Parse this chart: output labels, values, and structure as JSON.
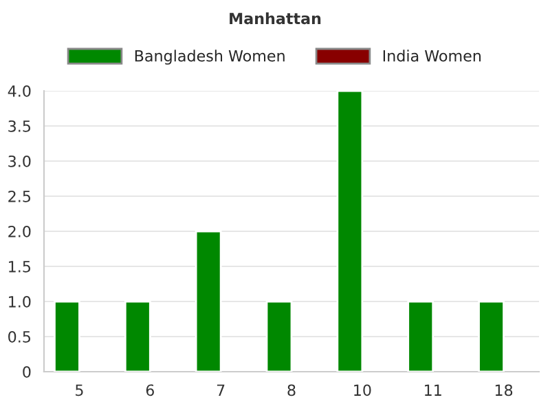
{
  "chart_data": {
    "type": "bar",
    "title": "Manhattan",
    "categories": [
      "5",
      "6",
      "7",
      "8",
      "10",
      "11",
      "18"
    ],
    "series": [
      {
        "name": "Bangladesh Women",
        "color": "#008800",
        "values": [
          1,
          1,
          2,
          1,
          4,
          1,
          1
        ]
      },
      {
        "name": "India Women",
        "color": "#880000",
        "values": [
          null,
          null,
          null,
          null,
          null,
          null,
          null
        ]
      }
    ],
    "ylim": [
      0,
      4
    ],
    "yticks": [
      0,
      {
        "value": 0.5,
        "label": "0.5"
      },
      {
        "value": 1,
        "label": "1.0"
      },
      {
        "value": 1.5,
        "label": "1.5"
      },
      {
        "value": 2,
        "label": "2.0"
      },
      {
        "value": 2.5,
        "label": "2.5"
      },
      {
        "value": 3,
        "label": "3.0"
      },
      {
        "value": 3.5,
        "label": "3.5"
      },
      {
        "value": 4,
        "label": "4.0"
      }
    ],
    "grid": "y",
    "legend": "top"
  }
}
